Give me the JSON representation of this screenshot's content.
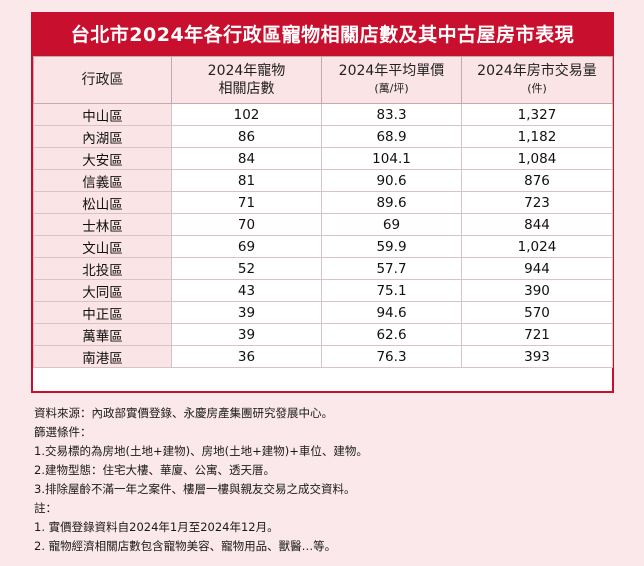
{
  "title": "台北市2024年各行政區寵物相關店數及其中古屋房市表現",
  "table": {
    "headers": [
      {
        "main": "行政區",
        "sub": ""
      },
      {
        "main": "2024年寵物",
        "sub": "相關店數"
      },
      {
        "main": "2024年平均單價",
        "sub": "(萬/坪)"
      },
      {
        "main": "2024年房市交易量",
        "sub": "(件)"
      }
    ],
    "rows": [
      {
        "district": "中山區",
        "stores": "102",
        "price": "83.3",
        "volume": "1,327"
      },
      {
        "district": "內湖區",
        "stores": "86",
        "price": "68.9",
        "volume": "1,182"
      },
      {
        "district": "大安區",
        "stores": "84",
        "price": "104.1",
        "volume": "1,084"
      },
      {
        "district": "信義區",
        "stores": "81",
        "price": "90.6",
        "volume": "876"
      },
      {
        "district": "松山區",
        "stores": "71",
        "price": "89.6",
        "volume": "723"
      },
      {
        "district": "士林區",
        "stores": "70",
        "price": "69",
        "volume": "844"
      },
      {
        "district": "文山區",
        "stores": "69",
        "price": "59.9",
        "volume": "1,024"
      },
      {
        "district": "北投區",
        "stores": "52",
        "price": "57.7",
        "volume": "944"
      },
      {
        "district": "大同區",
        "stores": "43",
        "price": "75.1",
        "volume": "390"
      },
      {
        "district": "中正區",
        "stores": "39",
        "price": "94.6",
        "volume": "570"
      },
      {
        "district": "萬華區",
        "stores": "39",
        "price": "62.6",
        "volume": "721"
      },
      {
        "district": "南港區",
        "stores": "36",
        "price": "76.3",
        "volume": "393"
      }
    ]
  },
  "notes": [
    "資料來源：內政部實價登錄、永慶房產集團研究發展中心。",
    "篩選條件：",
    "1.交易標的為房地(土地+建物)、房地(土地+建物)+車位、建物。",
    "2.建物型態：住宅大樓、華廈、公寓、透天厝。",
    "3.排除屋齡不滿一年之案件、樓層一樓與親友交易之成交資料。",
    "註：",
    "1. 實價登錄資料自2024年1月至2024年12月。",
    "2. 寵物經濟相關店數包含寵物美容、寵物用品、獸醫…等。"
  ]
}
